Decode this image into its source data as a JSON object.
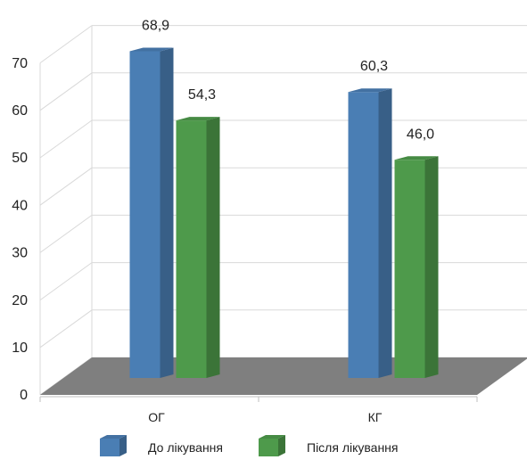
{
  "chart_data": {
    "type": "bar",
    "categories": [
      "ОГ",
      "КГ"
    ],
    "series": [
      {
        "name": "До лікування",
        "values": [
          68.9,
          60.3
        ],
        "labels": [
          "68,9",
          "60,3"
        ],
        "color": "#4a7eb4"
      },
      {
        "name": "Після лікування",
        "values": [
          54.3,
          46.0
        ],
        "labels": [
          "54,3",
          "46,0"
        ],
        "color": "#4e9a4b"
      }
    ],
    "yticks": [
      "0",
      "10",
      "20",
      "30",
      "40",
      "50",
      "60",
      "70"
    ],
    "ylim": [
      0,
      70
    ],
    "grid": true,
    "legend_position": "bottom",
    "floor_color": "#7f7f7f",
    "title": "",
    "xlabel": "",
    "ylabel": ""
  }
}
